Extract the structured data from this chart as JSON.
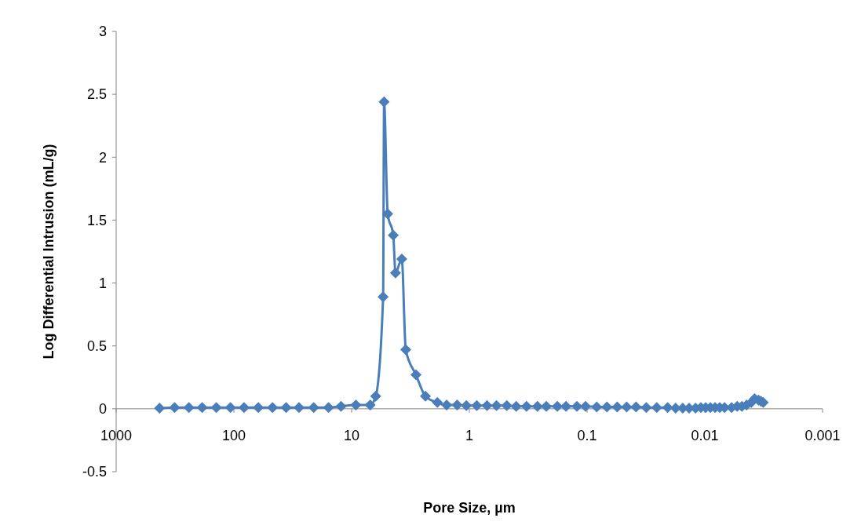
{
  "chart_data": {
    "type": "line",
    "xlabel": "Pore Size, µm",
    "ylabel": "Log Differential Intrusion (mL/g)",
    "log": "x",
    "xlim": [
      1000,
      0.001
    ],
    "xticks": [
      1000,
      100,
      10,
      1,
      0.1,
      0.01,
      0.001
    ],
    "ylim": [
      -0.5,
      3
    ],
    "yticks": [
      -0.5,
      0,
      0.5,
      1,
      1.5,
      2,
      2.5,
      3
    ],
    "marker": "diamond",
    "line_style": "solid",
    "series": [
      {
        "color": "#4a7ebb",
        "x": [
          428,
          319,
          241,
          186,
          141,
          107,
          82,
          62,
          47,
          36,
          28,
          21,
          15.7,
          12.3,
          9.2,
          6.95,
          6.24,
          5.4,
          5.3,
          4.94,
          4.43,
          4.24,
          3.75,
          3.47,
          2.84,
          2.36,
          1.87,
          1.56,
          1.27,
          1.06,
          0.865,
          0.708,
          0.588,
          0.481,
          0.4,
          0.327,
          0.264,
          0.222,
          0.179,
          0.151,
          0.122,
          0.103,
          0.0828,
          0.0678,
          0.0555,
          0.0461,
          0.0384,
          0.0314,
          0.0256,
          0.0207,
          0.0177,
          0.0154,
          0.0136,
          0.012,
          0.0108,
          0.00984,
          0.00897,
          0.00818,
          0.00746,
          0.0068,
          0.00592,
          0.00531,
          0.00484,
          0.00442,
          0.00403,
          0.00378,
          0.0035,
          0.00334,
          0.00319
        ],
        "values": [
          0.005,
          0.01,
          0.01,
          0.01,
          0.01,
          0.01,
          0.01,
          0.01,
          0.01,
          0.01,
          0.01,
          0.01,
          0.01,
          0.02,
          0.03,
          0.03,
          0.1,
          0.89,
          2.44,
          1.55,
          1.38,
          1.08,
          1.19,
          0.47,
          0.27,
          0.1,
          0.05,
          0.03,
          0.03,
          0.025,
          0.025,
          0.025,
          0.025,
          0.025,
          0.02,
          0.02,
          0.02,
          0.02,
          0.02,
          0.02,
          0.02,
          0.02,
          0.015,
          0.015,
          0.015,
          0.015,
          0.015,
          0.01,
          0.01,
          0.01,
          0.005,
          0.005,
          0.005,
          0.005,
          0.01,
          0.01,
          0.01,
          0.01,
          0.01,
          0.01,
          0.01,
          0.02,
          0.02,
          0.03,
          0.05,
          0.08,
          0.07,
          0.06,
          0.05
        ]
      }
    ]
  }
}
